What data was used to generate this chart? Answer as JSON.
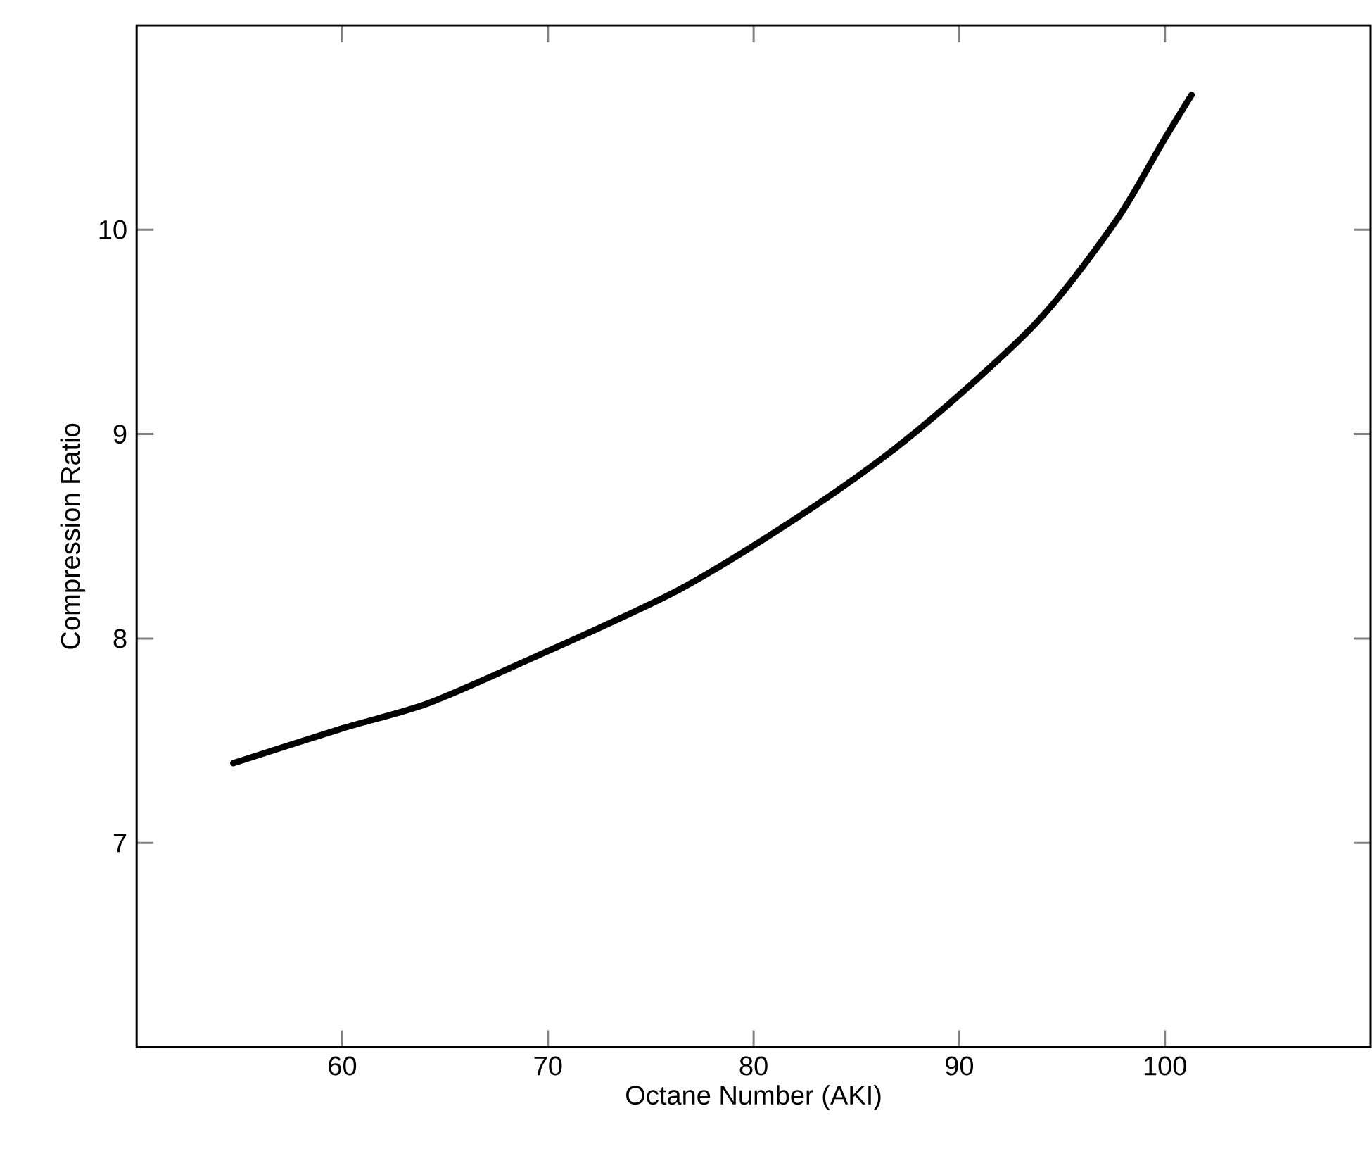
{
  "chart_data": {
    "type": "line",
    "xlabel": "Octane Number (AKI)",
    "ylabel": "Compression Ratio",
    "x": [
      54.7,
      60,
      64.1,
      68.7,
      76.4,
      83.0,
      88.0,
      93.7,
      97.6,
      99.9,
      101.3
    ],
    "values": [
      7.39,
      7.56,
      7.68,
      7.88,
      8.24,
      8.65,
      9.02,
      9.54,
      10.04,
      10.43,
      10.66
    ],
    "color": "#000000",
    "line_style": "solid",
    "grid": false,
    "xlim": [
      50,
      110
    ],
    "ylim": [
      6,
      11
    ],
    "xticks": [
      60,
      70,
      80,
      90,
      100
    ],
    "yticks": [
      7,
      8,
      9,
      10
    ]
  }
}
